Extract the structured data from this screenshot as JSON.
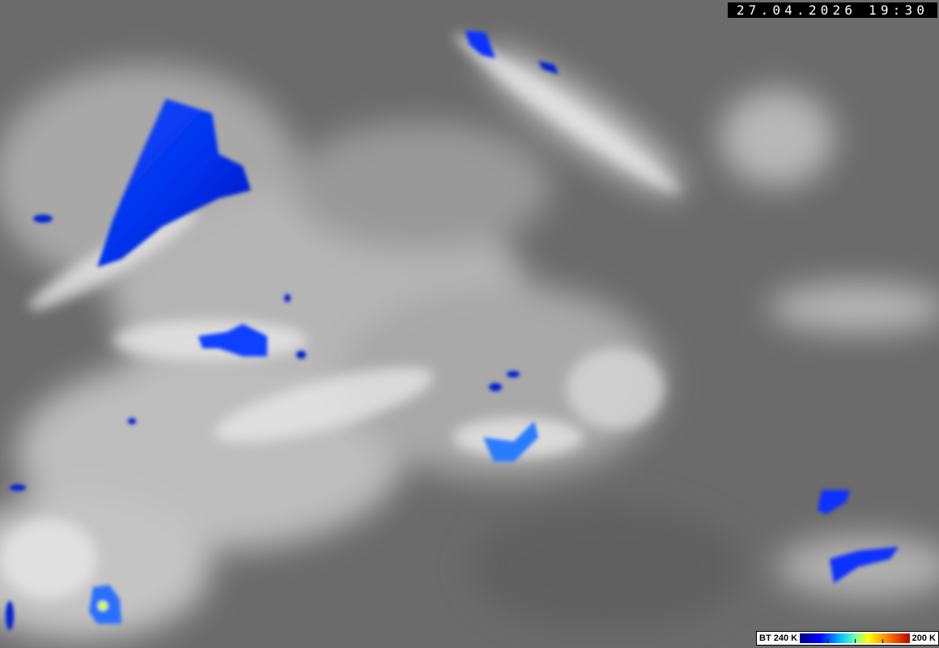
{
  "timestamp": "27.04.2026 19:30",
  "legend": {
    "min_label": "BT 240 K",
    "max_label": "200 K",
    "colors": [
      "#00008a",
      "#0000ff",
      "#00c8ff",
      "#6fffb0",
      "#ffff00",
      "#ff8000",
      "#c00000"
    ]
  },
  "background_color": "#6e6e6e"
}
